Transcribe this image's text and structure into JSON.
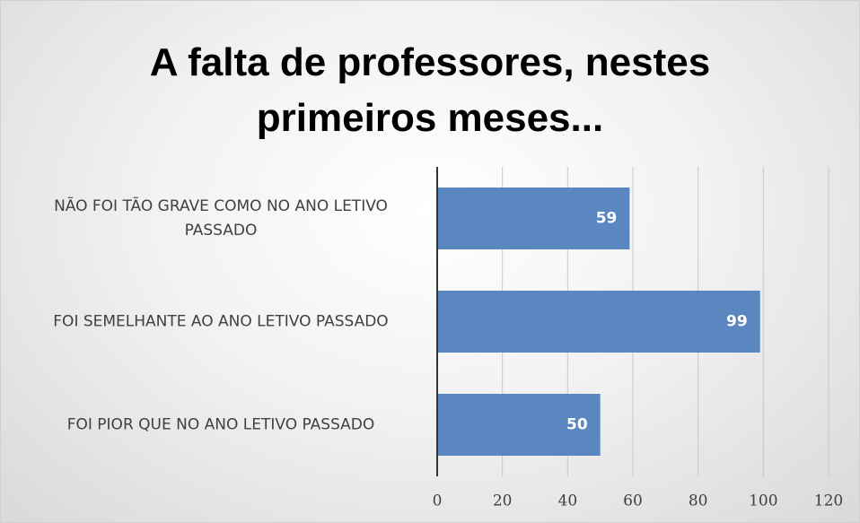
{
  "chart_data": {
    "type": "bar",
    "orientation": "horizontal",
    "title": "A falta de professores, nestes primeiros meses...",
    "categories": [
      "NÃO FOI TÃO GRAVE COMO NO ANO LETIVO PASSADO",
      "FOI SEMELHANTE AO ANO LETIVO PASSADO",
      "FOI PIOR QUE NO ANO LETIVO PASSADO"
    ],
    "values": [
      59,
      99,
      50
    ],
    "color": "#5b87c0",
    "xlim": [
      0,
      120
    ],
    "xticks": [
      0,
      20,
      40,
      60,
      80,
      100,
      120
    ],
    "grid": true
  }
}
